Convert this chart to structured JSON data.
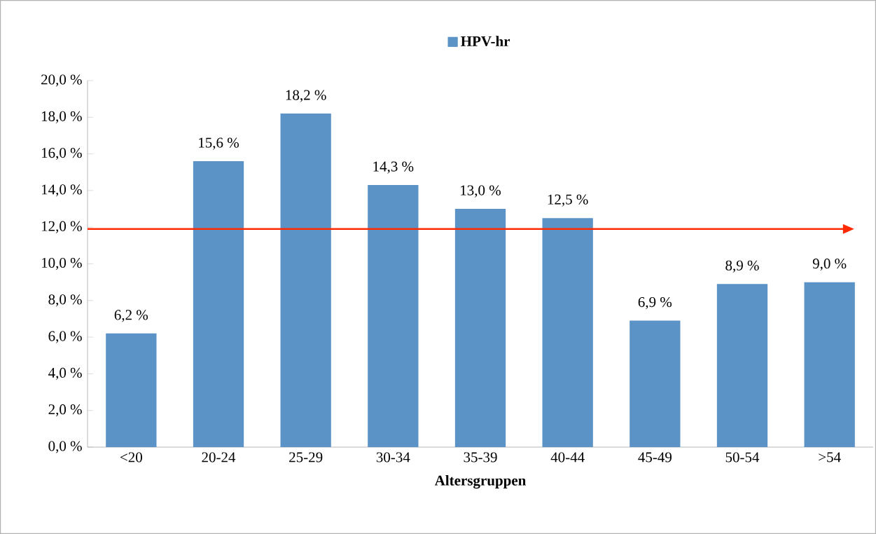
{
  "chart_data": {
    "type": "bar",
    "xlabel": "Altersgruppen",
    "categories": [
      "<20",
      "20-24",
      "25-29",
      "30-34",
      "35-39",
      "40-44",
      "45-49",
      "50-54",
      ">54"
    ],
    "series": [
      {
        "name": "HPV-hr",
        "color": "#5b93c7",
        "values": [
          6.2,
          15.6,
          18.2,
          14.3,
          13.0,
          12.5,
          6.9,
          8.9,
          9.0
        ],
        "value_labels": [
          "6,2 %",
          "15,6 %",
          "18,2 %",
          "14,3 %",
          "13,0 %",
          "12,5 %",
          "6,9 %",
          "8,9 %",
          "9,0 %"
        ]
      }
    ],
    "ylim": [
      0,
      20
    ],
    "yticks": [
      {
        "value": 0,
        "label": "0,0 %"
      },
      {
        "value": 2,
        "label": "2,0 %"
      },
      {
        "value": 4,
        "label": "4,0 %"
      },
      {
        "value": 6,
        "label": "6,0 %"
      },
      {
        "value": 8,
        "label": "8,0 %"
      },
      {
        "value": 10,
        "label": "10,0 %"
      },
      {
        "value": 12,
        "label": "12,0 %"
      },
      {
        "value": 14,
        "label": "14,0 %"
      },
      {
        "value": 16,
        "label": "16,0 %"
      },
      {
        "value": 18,
        "label": "18,0 %"
      },
      {
        "value": 20,
        "label": "20,0 %"
      }
    ],
    "ref_lines": [
      {
        "axis": "y",
        "value": 11.9,
        "color": "#ff2a00"
      }
    ],
    "legend": "top",
    "grid": false
  }
}
